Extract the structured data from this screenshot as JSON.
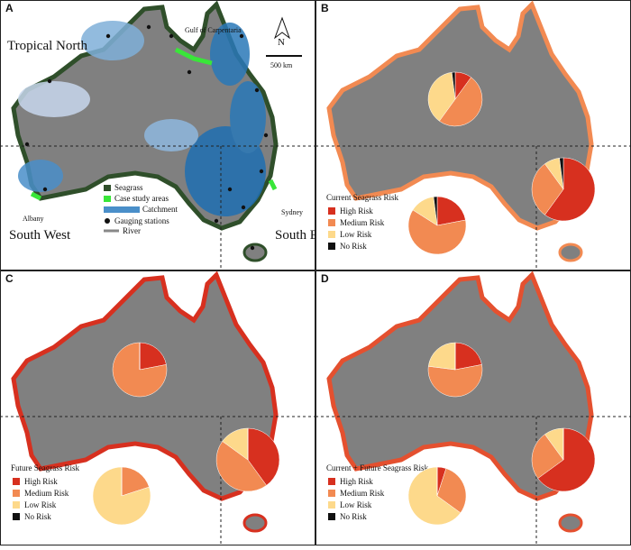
{
  "panel_a": {
    "label": "A",
    "regions": [
      "Tropical North",
      "South West",
      "South East"
    ],
    "places": [
      "Gulf of Carpentaria",
      "Albany",
      "Sydney"
    ],
    "compass": "N",
    "scale": "500 km",
    "legend": [
      "Seagrass",
      "Case study areas",
      "Catchment",
      "Gauging stations",
      "River"
    ]
  },
  "risk_categories": [
    "High Risk",
    "Medium Risk",
    "Low Risk",
    "No Risk"
  ],
  "risk_colors": [
    "#d7301f",
    "#f28a52",
    "#fdd98b",
    "#111111"
  ],
  "risk_panels": [
    {
      "label": "B",
      "legend_title": "Current Seagrass Risk",
      "coast_color": "#f28a52",
      "pies": [
        {
          "values": [
            10,
            50,
            38,
            2
          ]
        },
        {
          "values": [
            60,
            30,
            8,
            2
          ]
        },
        {
          "values": [
            22,
            62,
            14,
            2
          ]
        }
      ]
    },
    {
      "label": "C",
      "legend_title": "Future Seagrass Risk",
      "coast_color": "#d7301f",
      "pies": [
        {
          "values": [
            22,
            78,
            0,
            0
          ]
        },
        {
          "values": [
            40,
            45,
            15,
            0
          ]
        },
        {
          "values": [
            0,
            20,
            80,
            0
          ]
        }
      ]
    },
    {
      "label": "D",
      "legend_title": "Current + Future Seagrass Risk",
      "coast_color": "#e4502f",
      "pies": [
        {
          "values": [
            22,
            55,
            23,
            0
          ]
        },
        {
          "values": [
            65,
            25,
            10,
            0
          ]
        },
        {
          "values": [
            5,
            30,
            65,
            0
          ]
        }
      ]
    }
  ]
}
